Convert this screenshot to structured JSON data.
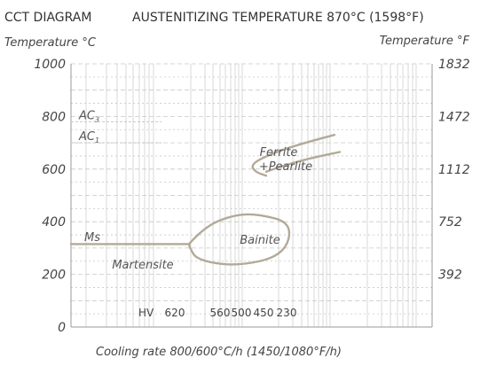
{
  "chart_data": {
    "type": "line",
    "title": "CCT DIAGRAM",
    "subtitle": "AUSTENITIZING TEMPERATURE 870°C (1598°F)",
    "ylabel_left": "Temperature °C",
    "ylabel_right": "Temperature °F",
    "xlabel": "Cooling rate 800/600°C/h (1450/1080°F/h)",
    "ylim": [
      0,
      1000
    ],
    "left_ticks": [
      "0",
      "200",
      "400",
      "600",
      "800",
      "1000"
    ],
    "right_ticks": [
      "392",
      "752",
      "1112",
      "1472",
      "1832"
    ],
    "critical_temperatures": [
      {
        "label": "AC",
        "subscript": "3",
        "temperature": 780
      },
      {
        "label": "AC",
        "subscript": "1",
        "temperature": 700
      }
    ],
    "regions": [
      {
        "name": "ferrite-pearlite",
        "lines": [
          "Ferrite",
          "+Pearlite"
        ]
      },
      {
        "name": "bainite",
        "lines": [
          "Bainite"
        ]
      },
      {
        "name": "ms",
        "lines": [
          "Ms"
        ]
      },
      {
        "name": "martensite",
        "lines": [
          "Martensite"
        ]
      }
    ],
    "hardness": {
      "label": "HV",
      "values": [
        "620",
        "560",
        "500",
        "450",
        "230"
      ]
    },
    "curves": [
      {
        "name": "ms-line",
        "y": [
          315,
          315
        ]
      },
      {
        "name": "ferrite-start",
        "y": [
          730,
          700,
          660,
          620,
          590,
          575
        ]
      },
      {
        "name": "ferrite-finish",
        "y": [
          590,
          610,
          640,
          665
        ]
      },
      {
        "name": "bainite-region",
        "y": [
          315,
          380,
          425,
          430,
          395,
          270,
          230,
          255,
          300,
          315
        ]
      }
    ],
    "grid": true
  },
  "colors": {
    "curve": "#b3a998",
    "grid": "#c8c8c8",
    "axis": "#9a9a9a",
    "text": "#444444"
  }
}
